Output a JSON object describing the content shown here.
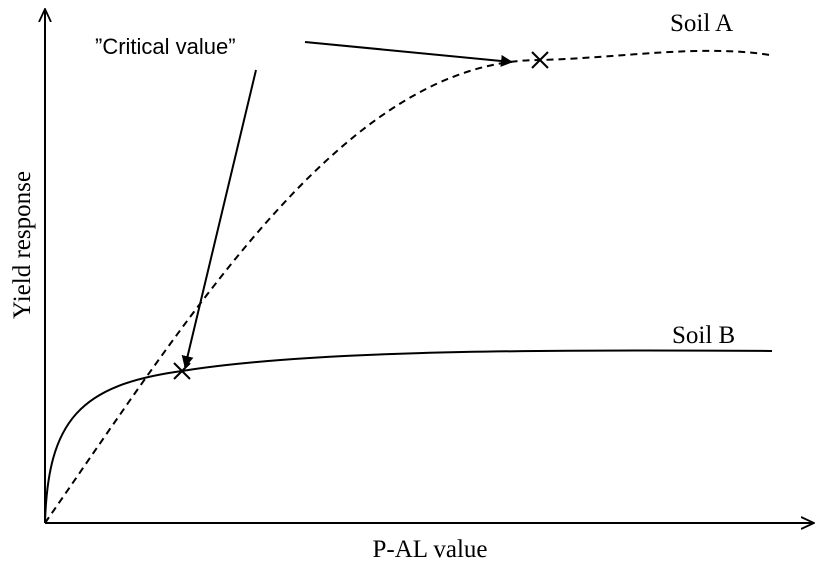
{
  "diagram": {
    "curves": [
      {
        "label": "Soil A"
      },
      {
        "label": "Soil B"
      }
    ],
    "annotation": "”Critical value”",
    "y_axis_label": "Yield response",
    "x_axis_label": "P-AL value"
  }
}
